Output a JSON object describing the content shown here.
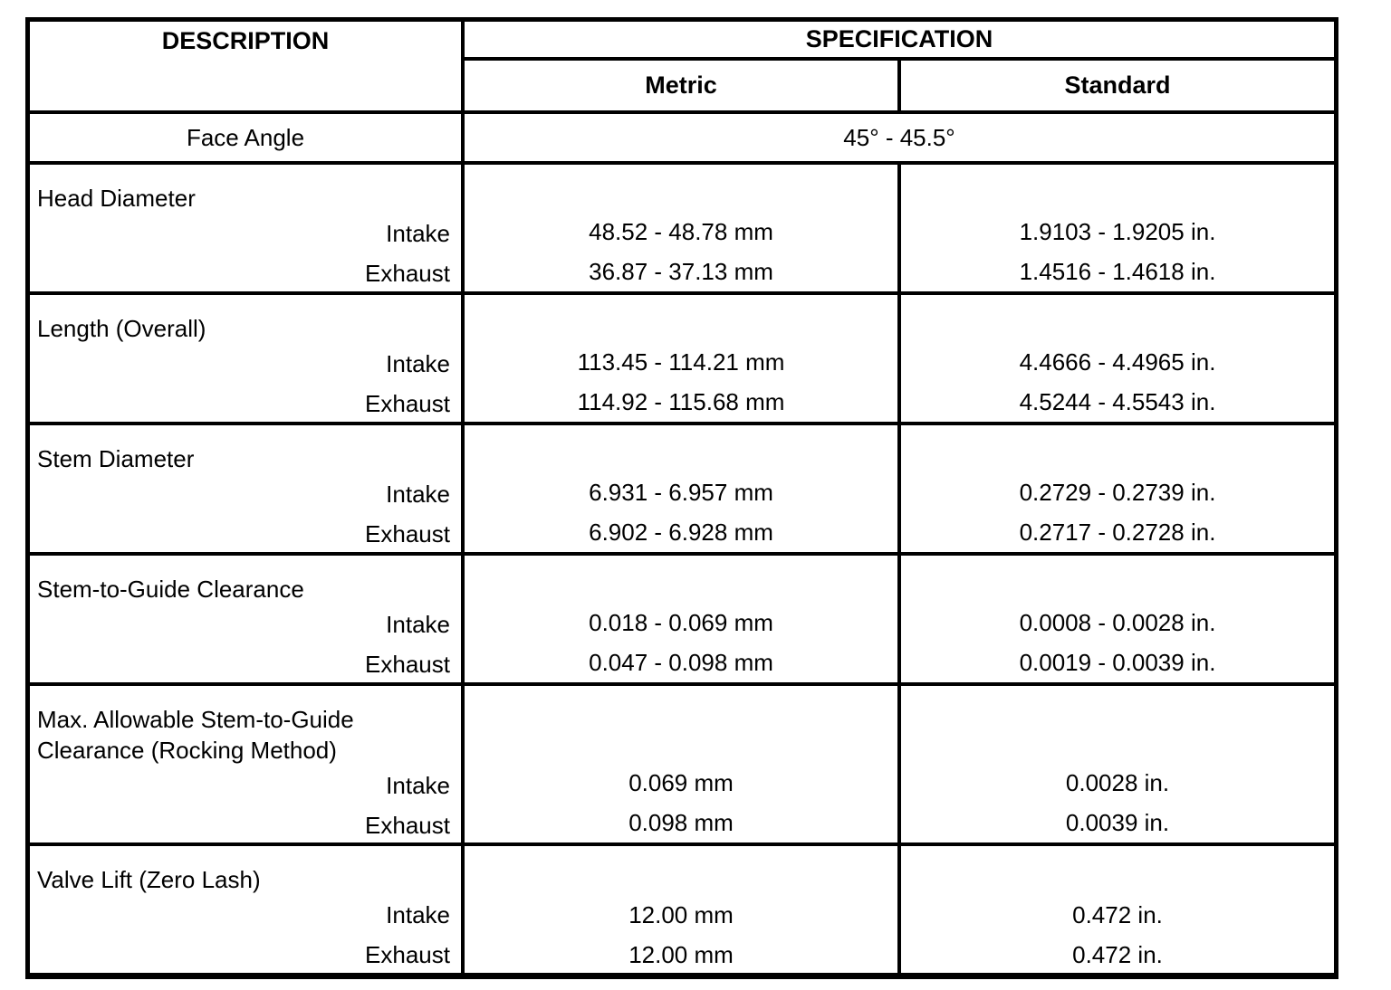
{
  "page": {
    "background": "#ffffff",
    "line_color": "#000000"
  },
  "table": {
    "header": {
      "description": "DESCRIPTION",
      "specification": "SPECIFICATION",
      "metric": "Metric",
      "standard": "Standard"
    },
    "face_angle": {
      "label": "Face Angle",
      "value": "45° - 45.5°"
    },
    "sections": [
      {
        "label": "Head Diameter",
        "rows": [
          {
            "label": "Intake",
            "metric": "48.52 - 48.78 mm",
            "standard": "1.9103 - 1.9205 in."
          },
          {
            "label": "Exhaust",
            "metric": "36.87 - 37.13 mm",
            "standard": "1.4516 - 1.4618 in."
          }
        ]
      },
      {
        "label": "Length (Overall)",
        "rows": [
          {
            "label": "Intake",
            "metric": "113.45 - 114.21 mm",
            "standard": "4.4666 - 4.4965 in."
          },
          {
            "label": "Exhaust",
            "metric": "114.92 - 115.68 mm",
            "standard": "4.5244 - 4.5543 in."
          }
        ]
      },
      {
        "label": "Stem Diameter",
        "rows": [
          {
            "label": "Intake",
            "metric": "6.931 - 6.957 mm",
            "standard": "0.2729 - 0.2739 in."
          },
          {
            "label": "Exhaust",
            "metric": "6.902 - 6.928 mm",
            "standard": "0.2717 - 0.2728 in."
          }
        ]
      },
      {
        "label": "Stem-to-Guide Clearance",
        "rows": [
          {
            "label": "Intake",
            "metric": "0.018 - 0.069 mm",
            "standard": "0.0008 - 0.0028 in."
          },
          {
            "label": "Exhaust",
            "metric": "0.047 - 0.098 mm",
            "standard": "0.0019 - 0.0039 in."
          }
        ]
      },
      {
        "label": "Max. Allowable Stem-to-Guide Clearance (Rocking Method)",
        "rows": [
          {
            "label": "Intake",
            "metric": "0.069 mm",
            "standard": "0.0028 in."
          },
          {
            "label": "Exhaust",
            "metric": "0.098 mm",
            "standard": "0.0039 in."
          }
        ]
      },
      {
        "label": "Valve Lift (Zero Lash)",
        "rows": [
          {
            "label": "Intake",
            "metric": "12.00 mm",
            "standard": "0.472 in."
          },
          {
            "label": "Exhaust",
            "metric": "12.00 mm",
            "standard": "0.472 in."
          }
        ]
      }
    ]
  }
}
